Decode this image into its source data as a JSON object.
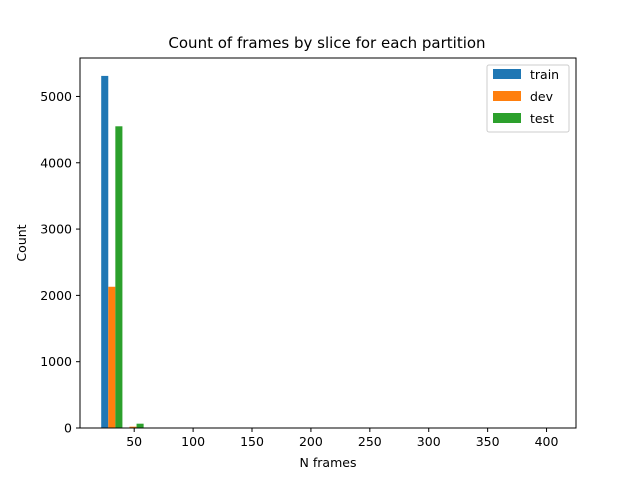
{
  "chart_data": {
    "type": "bar",
    "title": "Count of frames by slice for each partition",
    "xlabel": "N frames",
    "ylabel": "Count",
    "xlim": [
      4,
      425
    ],
    "ylim": [
      0,
      5580
    ],
    "xticks": [
      50,
      100,
      150,
      200,
      250,
      300,
      350,
      400
    ],
    "yticks": [
      0,
      1000,
      2000,
      3000,
      4000,
      5000
    ],
    "grid": false,
    "legend_position": "top-right",
    "bin_edges": [
      22,
      40,
      58
    ],
    "series": [
      {
        "name": "train",
        "color": "#1f77b4",
        "values": [
          5310,
          5
        ]
      },
      {
        "name": "dev",
        "color": "#ff7f0e",
        "values": [
          2130,
          20
        ]
      },
      {
        "name": "test",
        "color": "#2ca02c",
        "values": [
          4550,
          65
        ]
      }
    ]
  }
}
